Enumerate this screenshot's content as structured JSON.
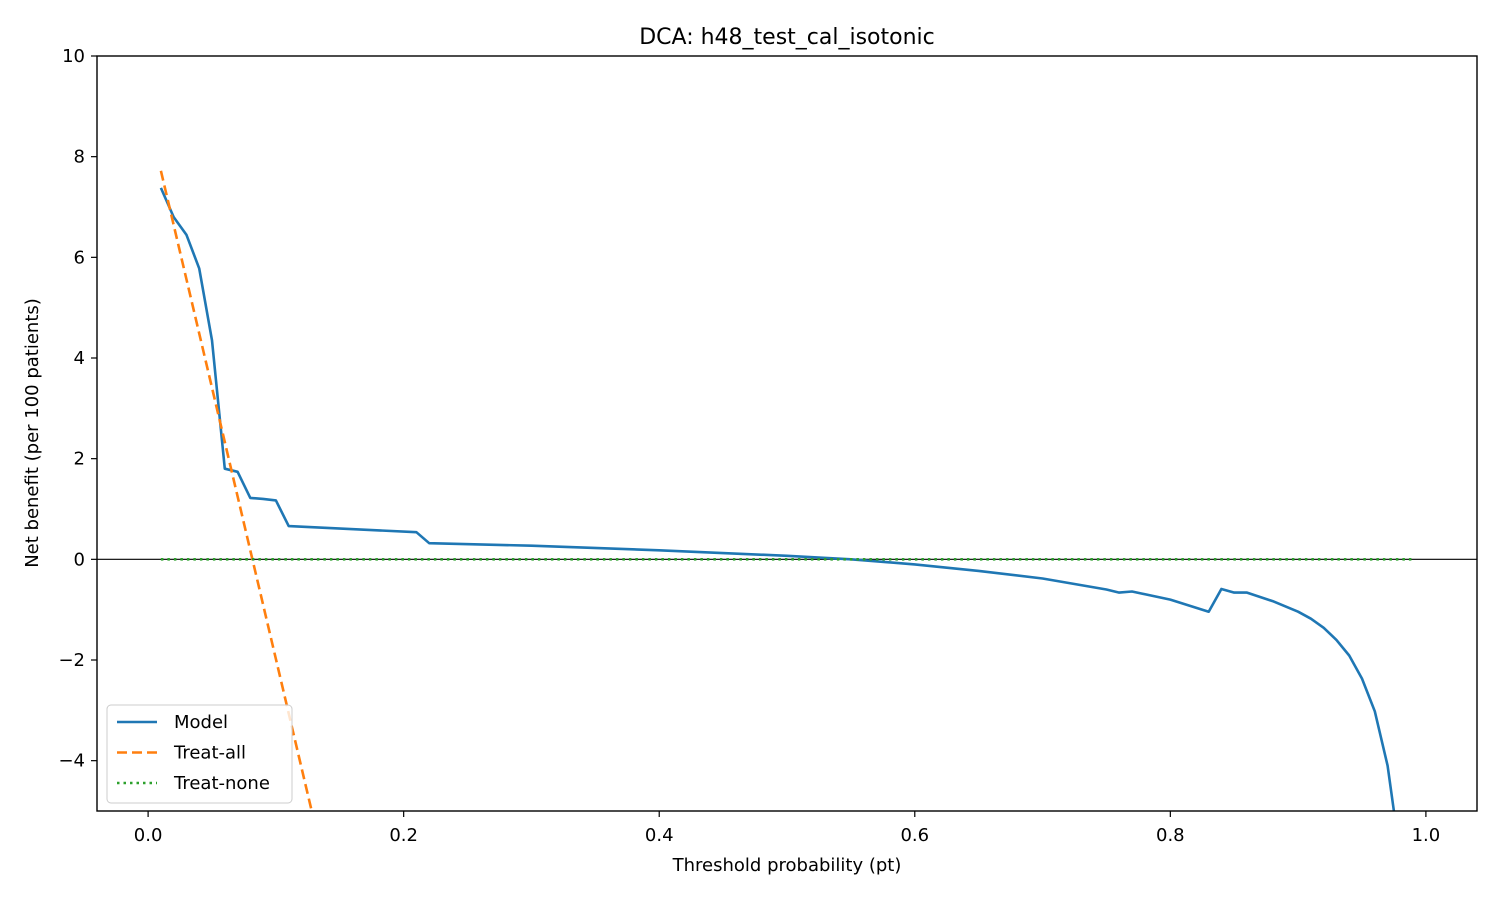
{
  "chart_data": {
    "type": "line",
    "title": "DCA: h48_test_cal_isotonic",
    "xlabel": "Threshold probability (pt)",
    "ylabel": "Net benefit (per 100 patients)",
    "xlim": [
      -0.04,
      1.04
    ],
    "ylim": [
      -5,
      10
    ],
    "xticks": [
      0.0,
      0.2,
      0.4,
      0.6,
      0.8,
      1.0
    ],
    "xtick_labels": [
      "0.0",
      "0.2",
      "0.4",
      "0.6",
      "0.8",
      "1.0"
    ],
    "yticks": [
      -4,
      -2,
      0,
      2,
      4,
      6,
      8,
      10
    ],
    "ytick_labels": [
      "−4",
      "−2",
      "0",
      "2",
      "4",
      "6",
      "8",
      "10"
    ],
    "reference_line_y": 0,
    "legend_position": "lower-left",
    "grid": false,
    "series": [
      {
        "name": "Model",
        "color": "#1f77b4",
        "style": "solid",
        "x": [
          0.01,
          0.02,
          0.03,
          0.04,
          0.05,
          0.06,
          0.07,
          0.08,
          0.09,
          0.1,
          0.11,
          0.21,
          0.22,
          0.3,
          0.4,
          0.5,
          0.55,
          0.6,
          0.65,
          0.7,
          0.75,
          0.76,
          0.77,
          0.8,
          0.83,
          0.84,
          0.85,
          0.86,
          0.88,
          0.9,
          0.91,
          0.92,
          0.93,
          0.94,
          0.95,
          0.96,
          0.97,
          0.975
        ],
        "y": [
          7.38,
          6.8,
          6.45,
          5.78,
          4.35,
          1.8,
          1.74,
          1.22,
          1.2,
          1.17,
          0.66,
          0.54,
          0.32,
          0.27,
          0.18,
          0.07,
          0.0,
          -0.1,
          -0.23,
          -0.38,
          -0.6,
          -0.66,
          -0.64,
          -0.8,
          -1.04,
          -0.59,
          -0.66,
          -0.66,
          -0.83,
          -1.04,
          -1.18,
          -1.36,
          -1.6,
          -1.91,
          -2.37,
          -3.02,
          -4.1,
          -5.0
        ]
      },
      {
        "name": "Treat-all",
        "color": "#ff7f0e",
        "style": "dashed",
        "x": [
          0.01,
          0.128
        ],
        "y": [
          7.72,
          -5.0
        ]
      },
      {
        "name": "Treat-none",
        "color": "#2ca02c",
        "style": "dotted",
        "x": [
          0.01,
          0.99
        ],
        "y": [
          0,
          0
        ]
      }
    ]
  }
}
